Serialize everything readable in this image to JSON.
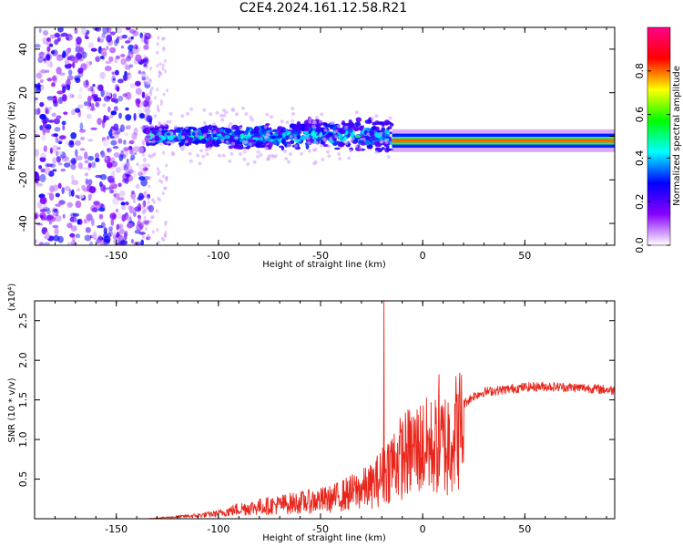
{
  "title": "C2E4.2024.161.12.58.R21",
  "chart_data": [
    {
      "type": "heatmap",
      "xlabel": "Height of straight line (km)",
      "ylabel": "Frequency (Hz)",
      "xlim": [
        -190,
        94
      ],
      "ylim": [
        -50,
        50
      ],
      "xticks": [
        -150,
        -100,
        -50,
        0,
        50
      ],
      "yticks": [
        -40,
        -20,
        0,
        20,
        40
      ],
      "colorbar": {
        "label": "Normalized spectral amplitude",
        "range": [
          0,
          1
        ],
        "ticks": [
          0.0,
          0.2,
          0.4,
          0.6,
          0.8
        ],
        "colors": [
          "#ffffff",
          "#8800ff",
          "#0000ff",
          "#00ffff",
          "#00ff00",
          "#ffff00",
          "#ff0000",
          "#ff0088"
        ]
      },
      "features": [
        {
          "name": "noise",
          "x": [
            -190,
            -133
          ],
          "y": [
            -50,
            50
          ],
          "amplitude": 0.15
        },
        {
          "name": "band",
          "x": [
            -133,
            -15
          ],
          "center_freq": 0,
          "halfwidth": 7,
          "amplitude": 0.35
        },
        {
          "name": "line",
          "x": [
            -15,
            94
          ],
          "center_freq": -2,
          "halfwidth": 2,
          "amplitude": 0.8
        }
      ]
    },
    {
      "type": "line",
      "xlabel": "Height of straight line (km)",
      "ylabel": "SNR (10 * v/v)",
      "y_multiplier": "(x10⁴)",
      "xlim": [
        -190,
        94
      ],
      "ylim": [
        0,
        2.75
      ],
      "xticks": [
        -150,
        -100,
        -50,
        0,
        50
      ],
      "yticks": [
        0.5,
        1.0,
        1.5,
        2.0,
        2.5
      ],
      "color": "#e8261c",
      "envelope": {
        "x": [
          -190,
          -135,
          -125,
          -110,
          -100,
          -90,
          -75,
          -60,
          -45,
          -35,
          -25,
          -20,
          -15,
          -10,
          -5,
          0,
          5,
          10,
          15,
          20,
          25,
          30,
          40,
          50,
          60,
          70,
          80,
          94
        ],
        "y": [
          0.0,
          0.0,
          0.02,
          0.05,
          0.08,
          0.15,
          0.2,
          0.25,
          0.3,
          0.4,
          0.5,
          0.65,
          0.85,
          0.95,
          1.05,
          1.1,
          1.1,
          1.15,
          1.3,
          1.45,
          1.55,
          1.6,
          1.63,
          1.66,
          1.67,
          1.66,
          1.65,
          1.62
        ]
      },
      "spikes": [
        {
          "x": -19,
          "y": 2.75
        },
        {
          "x": 8,
          "y": 1.82
        },
        {
          "x": 12,
          "y": 0.3
        }
      ]
    }
  ]
}
